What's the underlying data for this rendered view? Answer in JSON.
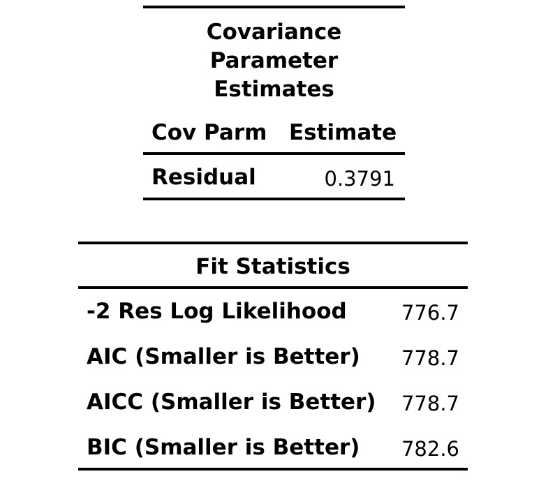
{
  "covariance_table": {
    "caption_lines": [
      "Covariance",
      "Parameter",
      "Estimates"
    ],
    "headers": [
      "Cov Parm",
      "Estimate"
    ],
    "rows": [
      {
        "label": "Residual",
        "value": "0.3791"
      }
    ]
  },
  "fit_table": {
    "caption": "Fit Statistics",
    "rows": [
      {
        "label": "-2 Res Log Likelihood",
        "value": "776.7"
      },
      {
        "label": "AIC (Smaller is Better)",
        "value": "778.7"
      },
      {
        "label": "AICC (Smaller is Better)",
        "value": "778.7"
      },
      {
        "label": "BIC (Smaller is Better)",
        "value": "782.6"
      }
    ]
  }
}
